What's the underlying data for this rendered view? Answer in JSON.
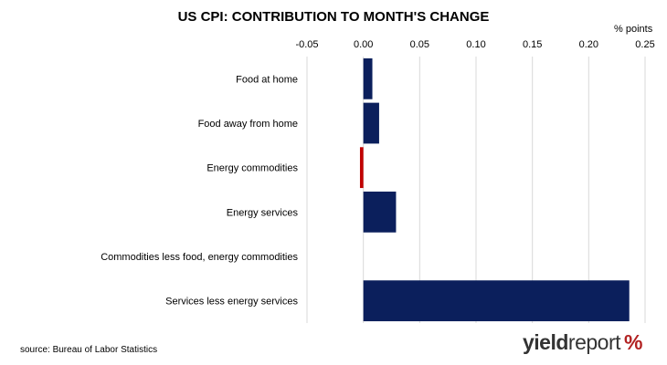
{
  "chart_data": {
    "type": "bar",
    "orientation": "horizontal",
    "title": "US CPI: CONTRIBUTION TO MONTH'S CHANGE",
    "unit_label": "% points",
    "categories": [
      "Food at home",
      "Food away from home",
      "Energy commodities",
      "Energy services",
      "Commodities less food, energy commodities",
      "Services less energy services"
    ],
    "values": [
      0.008,
      0.014,
      -0.003,
      0.029,
      0.0,
      0.236
    ],
    "xlim": [
      -0.05,
      0.25
    ],
    "ticks": [
      -0.05,
      0.0,
      0.05,
      0.1,
      0.15,
      0.2,
      0.25
    ],
    "tick_labels": [
      "-0.05",
      "0.00",
      "0.05",
      "0.10",
      "0.15",
      "0.20",
      "0.25"
    ],
    "x_axis_position": "top",
    "grid": true,
    "colors": {
      "positive": "#0b1f5c",
      "negative": "#c00000",
      "grid": "#d9d9d9"
    }
  },
  "footer": {
    "source": "source: Bureau of Labor Statistics",
    "logo_part1": "yield",
    "logo_part2": "report",
    "logo_symbol": "%"
  }
}
